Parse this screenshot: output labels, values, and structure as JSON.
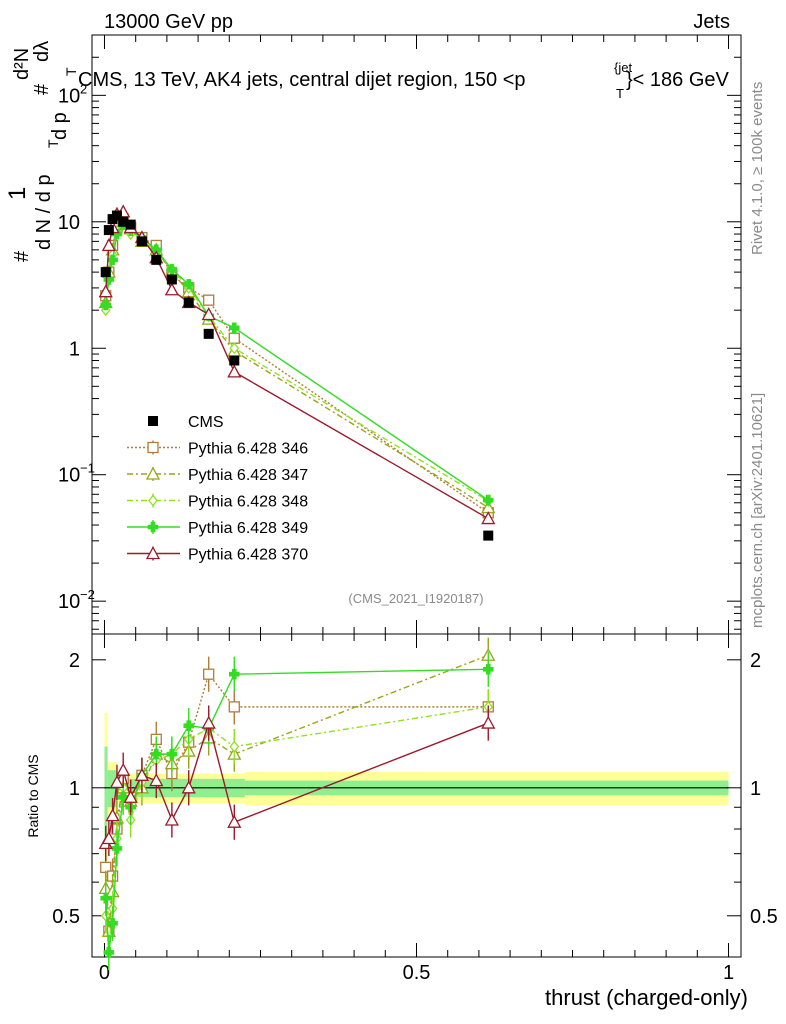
{
  "header": {
    "left": "13000 GeV pp",
    "right": "Jets",
    "title": "CMS, 13 TeV, AK4 jets, central dijet region, 150 <p",
    "title_sup": "{jet",
    "title_sub": "T",
    "title_end": "}< 186 GeV"
  },
  "side": {
    "rivet": "Rivet 4.1.0, ≥ 100k events",
    "mcplots": "mcplots.cern.ch [arXiv:2401.10621]"
  },
  "watermark": "(CMS_2021_I1920187)",
  "xlabel": "thrust (charged-only)",
  "ratio_ylabel": "Ratio to CMS",
  "ylabel_parts": {
    "hash": "#",
    "one": "1",
    "dn": "d N / d p",
    "t": "T",
    "d2n": "d²N",
    "dpt": "d p",
    "dl": "dλ"
  },
  "colors": {
    "cms": "#000000",
    "p346": "#b07c3a",
    "p347": "#9ca31a",
    "p348": "#8fe21c",
    "p349": "#33dd22",
    "p370": "#9b1a2b",
    "band_inner": "#90ee90",
    "band_outer": "#ffff99"
  },
  "chart_data": {
    "type": "scatter",
    "title": "CMS, 13 TeV, AK4 jets, central dijet region, 150 < pT < 186 GeV",
    "xlabel": "thrust (charged-only)",
    "ylabel": "1/dN/dpT  d²N/dpT dλ",
    "xlim": [
      -0.02,
      1.02
    ],
    "ylim": [
      0.0055,
      300
    ],
    "log_y": true,
    "x_ticks": [
      "0",
      "0.5",
      "1"
    ],
    "y_ticks": [
      "10^-2",
      "10^-1",
      "1",
      "10",
      "10^2"
    ],
    "x": [
      0.002,
      0.007,
      0.013,
      0.02,
      0.03,
      0.042,
      0.06,
      0.083,
      0.108,
      0.135,
      0.167,
      0.208,
      0.615
    ],
    "series": [
      {
        "name": "CMS",
        "marker": "square-filled",
        "values": [
          4.0,
          8.6,
          10.5,
          11.2,
          10.0,
          9.5,
          7.0,
          5.0,
          3.5,
          2.3,
          1.3,
          0.8,
          0.033
        ]
      },
      {
        "name": "Pythia 6.428 346",
        "marker": "square-open",
        "style": "dotted",
        "values": [
          2.6,
          4.0,
          6.5,
          9.0,
          10.5,
          9.0,
          7.5,
          6.5,
          3.8,
          3.0,
          2.4,
          1.2,
          0.05
        ]
      },
      {
        "name": "Pythia 6.428 347",
        "marker": "triangle-open",
        "style": "dashdot",
        "values": [
          2.3,
          4.0,
          6.0,
          9.5,
          10.0,
          8.8,
          7.0,
          6.0,
          4.0,
          2.8,
          1.7,
          0.95,
          0.055
        ]
      },
      {
        "name": "Pythia 6.428 348",
        "marker": "diamond-open",
        "style": "dashdot",
        "values": [
          2.0,
          3.5,
          5.5,
          8.5,
          10.0,
          8.0,
          7.2,
          5.8,
          4.2,
          3.0,
          1.8,
          1.0,
          0.062
        ]
      },
      {
        "name": "Pythia 6.428 349",
        "marker": "cross",
        "style": "solid",
        "values": [
          2.2,
          3.5,
          5.0,
          8.0,
          9.5,
          8.5,
          7.5,
          6.0,
          4.2,
          3.2,
          1.8,
          1.45,
          0.063
        ]
      },
      {
        "name": "Pythia 6.428 370",
        "marker": "triangle-open",
        "style": "solid",
        "values": [
          2.8,
          6.5,
          9.0,
          11.5,
          12.0,
          9.0,
          7.5,
          5.2,
          2.9,
          2.3,
          1.85,
          0.65,
          0.045
        ]
      }
    ],
    "ratio": {
      "ylabel": "Ratio to CMS",
      "ylim": [
        0.4,
        2.3
      ],
      "y_ticks": [
        "0.5",
        "1",
        "2"
      ],
      "series": [
        {
          "name": "Pythia 6.428 346",
          "values": [
            0.65,
            0.46,
            0.62,
            0.8,
            1.05,
            0.95,
            1.07,
            1.3,
            1.08,
            1.28,
            1.85,
            1.55,
            1.55
          ]
        },
        {
          "name": "Pythia 6.428 347",
          "values": [
            0.58,
            0.46,
            0.57,
            0.85,
            1.0,
            0.93,
            1.0,
            1.2,
            1.14,
            1.22,
            1.31,
            1.2,
            2.05
          ]
        },
        {
          "name": "Pythia 6.428 348",
          "values": [
            0.5,
            0.41,
            0.52,
            0.76,
            1.0,
            0.84,
            1.03,
            1.16,
            1.2,
            1.3,
            1.38,
            1.25,
            1.55
          ]
        },
        {
          "name": "Pythia 6.428 349",
          "values": [
            0.55,
            0.41,
            0.48,
            0.72,
            0.95,
            0.9,
            1.07,
            1.2,
            1.2,
            1.4,
            1.38,
            1.85,
            1.9
          ]
        },
        {
          "name": "Pythia 6.428 370",
          "values": [
            0.74,
            0.76,
            0.86,
            1.03,
            1.1,
            0.95,
            1.07,
            1.04,
            0.84,
            1.0,
            1.42,
            0.83,
            1.42
          ]
        }
      ],
      "band_inner": [
        [
          0.0,
          0.005,
          0.75,
          1.25
        ],
        [
          0.005,
          0.02,
          0.9,
          1.1
        ],
        [
          0.02,
          0.225,
          0.95,
          1.05
        ],
        [
          0.225,
          1.0,
          0.96,
          1.04
        ]
      ],
      "band_outer": [
        [
          0.0,
          0.005,
          0.55,
          1.5
        ],
        [
          0.005,
          0.02,
          0.85,
          1.15
        ],
        [
          0.02,
          0.225,
          0.92,
          1.08
        ],
        [
          0.225,
          1.0,
          0.91,
          1.09
        ]
      ]
    }
  }
}
